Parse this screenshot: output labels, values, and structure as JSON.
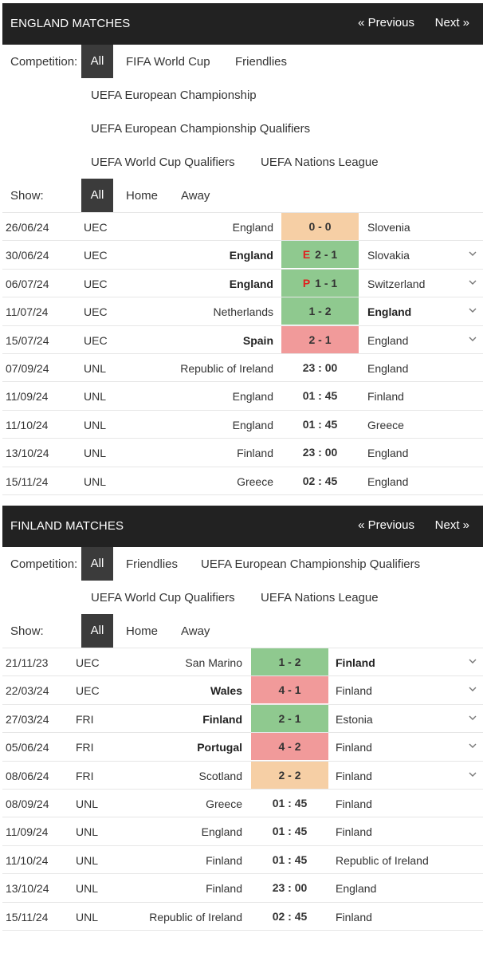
{
  "england": {
    "title": "ENGLAND MATCHES",
    "prev": "« Previous",
    "next": "Next »",
    "competition_label": "Competition:",
    "competitions": [
      "All",
      "FIFA World Cup",
      "Friendlies",
      "UEFA European Championship",
      "UEFA European Championship Qualifiers",
      "UEFA World Cup Qualifiers",
      "UEFA Nations League"
    ],
    "show_label": "Show:",
    "show_options": [
      "All",
      "Home",
      "Away"
    ],
    "matches": [
      {
        "date": "26/06/24",
        "comp": "UEC",
        "home": "England",
        "score": "0 - 0",
        "away": "Slovenia",
        "result": "draw",
        "bold": "",
        "flag": "",
        "expand": false
      },
      {
        "date": "30/06/24",
        "comp": "UEC",
        "home": "England",
        "score": "2 - 1",
        "away": "Slovakia",
        "result": "win",
        "bold": "home",
        "flag": "E",
        "expand": true
      },
      {
        "date": "06/07/24",
        "comp": "UEC",
        "home": "England",
        "score": "1 - 1",
        "away": "Switzerland",
        "result": "win",
        "bold": "home",
        "flag": "P",
        "expand": true
      },
      {
        "date": "11/07/24",
        "comp": "UEC",
        "home": "Netherlands",
        "score": "1 - 2",
        "away": "England",
        "result": "win",
        "bold": "away",
        "flag": "",
        "expand": true
      },
      {
        "date": "15/07/24",
        "comp": "UEC",
        "home": "Spain",
        "score": "2 - 1",
        "away": "England",
        "result": "loss",
        "bold": "home",
        "flag": "",
        "expand": true
      },
      {
        "date": "07/09/24",
        "comp": "UNL",
        "home": "Republic of Ireland",
        "score": "23 : 00",
        "away": "England",
        "result": "",
        "bold": "",
        "flag": "",
        "expand": false
      },
      {
        "date": "11/09/24",
        "comp": "UNL",
        "home": "England",
        "score": "01 : 45",
        "away": "Finland",
        "result": "",
        "bold": "",
        "flag": "",
        "expand": false
      },
      {
        "date": "11/10/24",
        "comp": "UNL",
        "home": "England",
        "score": "01 : 45",
        "away": "Greece",
        "result": "",
        "bold": "",
        "flag": "",
        "expand": false
      },
      {
        "date": "13/10/24",
        "comp": "UNL",
        "home": "Finland",
        "score": "23 : 00",
        "away": "England",
        "result": "",
        "bold": "",
        "flag": "",
        "expand": false
      },
      {
        "date": "15/11/24",
        "comp": "UNL",
        "home": "Greece",
        "score": "02 : 45",
        "away": "England",
        "result": "",
        "bold": "",
        "flag": "",
        "expand": false
      }
    ]
  },
  "finland": {
    "title": "FINLAND MATCHES",
    "prev": "« Previous",
    "next": "Next »",
    "competition_label": "Competition:",
    "competitions": [
      "All",
      "Friendlies",
      "UEFA European Championship Qualifiers",
      "UEFA World Cup Qualifiers",
      "UEFA Nations League"
    ],
    "show_label": "Show:",
    "show_options": [
      "All",
      "Home",
      "Away"
    ],
    "matches": [
      {
        "date": "21/11/23",
        "comp": "UEC",
        "home": "San Marino",
        "score": "1 - 2",
        "away": "Finland",
        "result": "win",
        "bold": "away",
        "flag": "",
        "expand": true
      },
      {
        "date": "22/03/24",
        "comp": "UEC",
        "home": "Wales",
        "score": "4 - 1",
        "away": "Finland",
        "result": "loss",
        "bold": "home",
        "flag": "",
        "expand": true
      },
      {
        "date": "27/03/24",
        "comp": "FRI",
        "home": "Finland",
        "score": "2 - 1",
        "away": "Estonia",
        "result": "win",
        "bold": "home",
        "flag": "",
        "expand": true
      },
      {
        "date": "05/06/24",
        "comp": "FRI",
        "home": "Portugal",
        "score": "4 - 2",
        "away": "Finland",
        "result": "loss",
        "bold": "home",
        "flag": "",
        "expand": true
      },
      {
        "date": "08/06/24",
        "comp": "FRI",
        "home": "Scotland",
        "score": "2 - 2",
        "away": "Finland",
        "result": "draw",
        "bold": "",
        "flag": "",
        "expand": true
      },
      {
        "date": "08/09/24",
        "comp": "UNL",
        "home": "Greece",
        "score": "01 : 45",
        "away": "Finland",
        "result": "",
        "bold": "",
        "flag": "",
        "expand": false
      },
      {
        "date": "11/09/24",
        "comp": "UNL",
        "home": "England",
        "score": "01 : 45",
        "away": "Finland",
        "result": "",
        "bold": "",
        "flag": "",
        "expand": false
      },
      {
        "date": "11/10/24",
        "comp": "UNL",
        "home": "Finland",
        "score": "01 : 45",
        "away": "Republic of Ireland",
        "result": "",
        "bold": "",
        "flag": "",
        "expand": false
      },
      {
        "date": "13/10/24",
        "comp": "UNL",
        "home": "Finland",
        "score": "23 : 00",
        "away": "England",
        "result": "",
        "bold": "",
        "flag": "",
        "expand": false
      },
      {
        "date": "15/11/24",
        "comp": "UNL",
        "home": "Republic of Ireland",
        "score": "02 : 45",
        "away": "Finland",
        "result": "",
        "bold": "",
        "flag": "",
        "expand": false
      }
    ]
  },
  "colors": {
    "header_bg": "#222222",
    "active_bg": "#3b3b3b",
    "win": "#8fc98f",
    "loss": "#f19a9a",
    "draw": "#f6cfa5",
    "flag": "#e02020"
  },
  "icons": {
    "expand": "chevron-down-icon"
  }
}
